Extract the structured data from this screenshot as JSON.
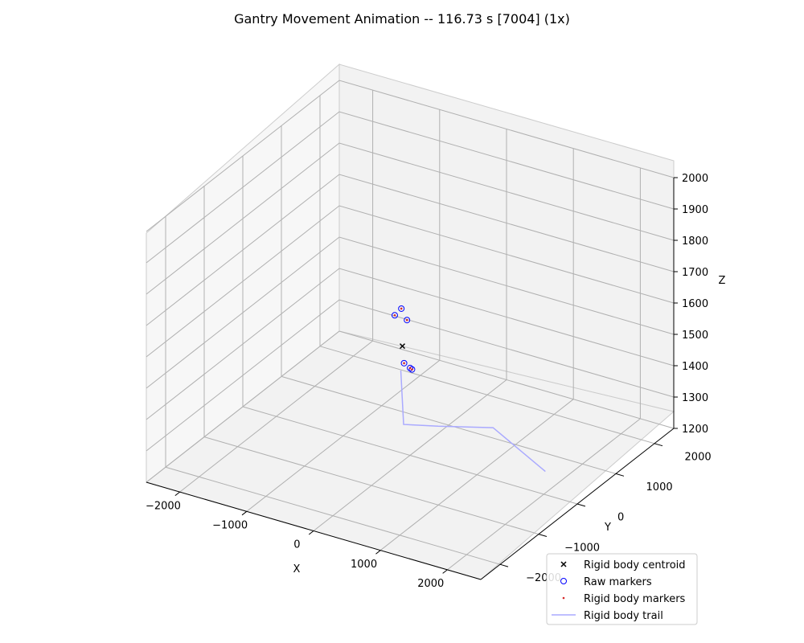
{
  "chart_data": {
    "type": "scatter",
    "title": "Gantry Movement Animation -- 116.73 s [7004] (1x)",
    "xlabel": "X",
    "ylabel": "Y",
    "zlabel": "Z",
    "xlim": [
      -2500,
      2500
    ],
    "ylim": [
      -2500,
      2500
    ],
    "zlim": [
      1200,
      2000
    ],
    "x_ticks": [
      -2000,
      -1000,
      0,
      1000,
      2000
    ],
    "y_ticks": [
      -2000,
      -1000,
      0,
      1000,
      2000
    ],
    "z_ticks": [
      1200,
      1300,
      1400,
      1500,
      1600,
      1700,
      1800,
      1900,
      2000
    ],
    "grid": true,
    "legend_position": "bottom-right",
    "series": [
      {
        "name": "Rigid body centroid",
        "marker": "x",
        "color": "#000000",
        "points": [
          {
            "x": -120,
            "y": 10,
            "z": 1540
          }
        ]
      },
      {
        "name": "Raw markers",
        "marker": "circle",
        "color": "#0000ff",
        "points": [
          {
            "x": -130,
            "y": 0,
            "z": 1660
          },
          {
            "x": -240,
            "y": 20,
            "z": 1630
          },
          {
            "x": -40,
            "y": -10,
            "z": 1630
          },
          {
            "x": -170,
            "y": 140,
            "z": 1470
          },
          {
            "x": -40,
            "y": 120,
            "z": 1460
          },
          {
            "x": -80,
            "y": 140,
            "z": 1460
          }
        ]
      },
      {
        "name": "Rigid body markers",
        "marker": "dot",
        "color": "#d62728",
        "points": [
          {
            "x": -130,
            "y": 0,
            "z": 1660
          },
          {
            "x": -240,
            "y": 20,
            "z": 1630
          },
          {
            "x": -40,
            "y": -10,
            "z": 1630
          },
          {
            "x": -170,
            "y": 140,
            "z": 1470
          },
          {
            "x": -40,
            "y": 120,
            "z": 1460
          },
          {
            "x": -80,
            "y": 140,
            "z": 1460
          }
        ]
      },
      {
        "name": "Rigid body trail",
        "marker": "line",
        "color": "#aaaaff",
        "points": [
          {
            "x": -190,
            "y": 90,
            "z": 1450
          },
          {
            "x": -500,
            "y": 700,
            "z": 1200
          },
          {
            "x": -100,
            "y": 900,
            "z": 1200
          },
          {
            "x": 520,
            "y": 1250,
            "z": 1200
          },
          {
            "x": 1700,
            "y": 560,
            "z": 1200
          }
        ]
      }
    ]
  }
}
